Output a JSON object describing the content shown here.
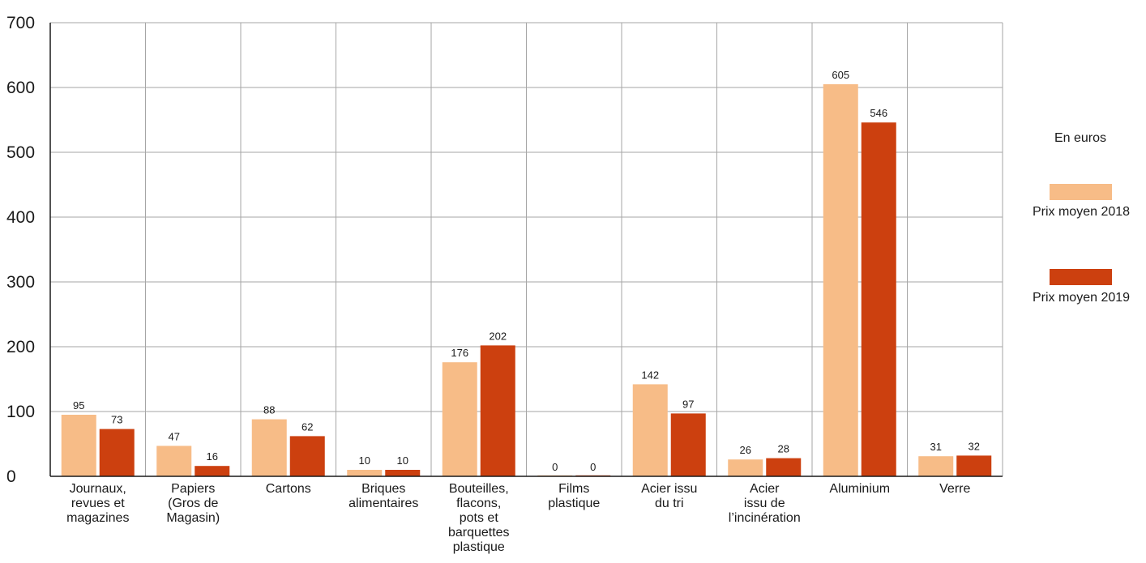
{
  "chart_data": {
    "type": "bar",
    "categories": [
      [
        "Journaux,",
        "revues et",
        "magazines"
      ],
      [
        "Papiers",
        "(Gros de",
        "Magasin)"
      ],
      [
        "Cartons"
      ],
      [
        "Briques",
        "alimentaires"
      ],
      [
        "Bouteilles,",
        "flacons,",
        "pots et",
        "barquettes",
        "plastique"
      ],
      [
        "Films",
        "plastique"
      ],
      [
        "Acier issu",
        "du tri"
      ],
      [
        "Acier",
        "issu de",
        "l’incinération"
      ],
      [
        "Aluminium"
      ],
      [
        "Verre"
      ]
    ],
    "series": [
      {
        "name": "Prix moyen 2018",
        "color": "#f7bc87",
        "values": [
          95,
          47,
          88,
          10,
          176,
          0,
          142,
          26,
          605,
          31
        ]
      },
      {
        "name": "Prix moyen 2019",
        "color": "#cc400f",
        "values": [
          73,
          16,
          62,
          10,
          202,
          0,
          97,
          28,
          546,
          32
        ]
      }
    ],
    "ylim": [
      0,
      700
    ],
    "yticks": [
      0,
      100,
      200,
      300,
      400,
      500,
      600,
      700
    ],
    "grid": true,
    "unit_label": "En euros",
    "legend_position": "right"
  }
}
